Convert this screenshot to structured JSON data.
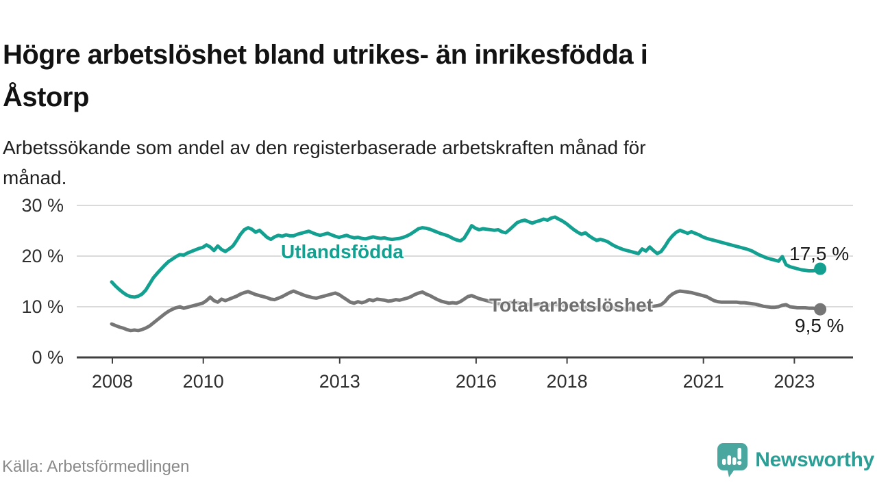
{
  "title": {
    "full": "Högre arbetslöshet bland utrikes- än inrikesfödda i Åstorp",
    "line1": "Högre arbetslöshet bland utrikes- än inrikesfödda i",
    "line2": "Åstorp"
  },
  "subtitle": {
    "full": "Arbetssökande som andel av den registerbaserade arbetskraften månad för månad.",
    "line1": "Arbetssökande som andel av den registerbaserade arbetskraften månad för",
    "line2": "månad."
  },
  "source": "Källa: Arbetsförmedlingen",
  "brand": {
    "name": "Newsworthy",
    "icon": "bar-chart-speech-bubble-icon",
    "icon_color": "#4aa7a0",
    "text_color": "#2b9f96"
  },
  "colors": {
    "foreign_born_line": "#14a090",
    "total_line": "#767676",
    "gridline": "#dadada",
    "axis": "#3f3f3f",
    "value_label": "#1a1a1a"
  },
  "chart_data": {
    "type": "line",
    "x_unit": "month",
    "x_range": {
      "start": "2008-01",
      "end": "2023-08"
    },
    "grid": "horizontal",
    "ylim": [
      0,
      31
    ],
    "x_ticks": [
      {
        "year": 2008,
        "label": "2008"
      },
      {
        "year": 2010,
        "label": "2010"
      },
      {
        "year": 2013,
        "label": "2013"
      },
      {
        "year": 2016,
        "label": "2016"
      },
      {
        "year": 2018,
        "label": "2018"
      },
      {
        "year": 2021,
        "label": "2021"
      },
      {
        "year": 2023,
        "label": "2023"
      }
    ],
    "y_ticks": [
      {
        "value": 0,
        "label": "0 %"
      },
      {
        "value": 10,
        "label": "10 %"
      },
      {
        "value": 20,
        "label": "20 %"
      },
      {
        "value": 30,
        "label": "30 %"
      }
    ],
    "series": [
      {
        "name": "Utlandsfödda",
        "color": "#14a090",
        "end_label": "17,5 %",
        "end_value": 17.5,
        "values": [
          14.9,
          14.1,
          13.4,
          12.8,
          12.3,
          12.0,
          11.9,
          12.1,
          12.5,
          13.3,
          14.5,
          15.7,
          16.6,
          17.4,
          18.2,
          18.9,
          19.4,
          19.9,
          20.3,
          20.2,
          20.6,
          20.9,
          21.2,
          21.5,
          21.7,
          22.2,
          21.8,
          21.1,
          22.0,
          21.3,
          20.9,
          21.4,
          22.0,
          23.1,
          24.3,
          25.2,
          25.6,
          25.3,
          24.7,
          25.1,
          24.4,
          23.7,
          23.3,
          23.8,
          24.1,
          23.9,
          24.2,
          24.0,
          24.0,
          24.3,
          24.5,
          24.7,
          24.9,
          24.6,
          24.3,
          24.1,
          24.3,
          24.5,
          24.2,
          23.9,
          23.7,
          23.9,
          24.1,
          23.8,
          23.6,
          23.7,
          23.5,
          23.4,
          23.6,
          23.8,
          23.6,
          23.5,
          23.6,
          23.4,
          23.3,
          23.4,
          23.5,
          23.7,
          24.0,
          24.4,
          24.9,
          25.4,
          25.6,
          25.5,
          25.3,
          25.0,
          24.7,
          24.4,
          24.2,
          23.9,
          23.5,
          23.2,
          23.0,
          23.5,
          24.7,
          26.0,
          25.5,
          25.2,
          25.4,
          25.3,
          25.2,
          25.1,
          25.2,
          24.8,
          24.6,
          25.2,
          25.9,
          26.6,
          26.9,
          27.1,
          26.8,
          26.5,
          26.8,
          27.0,
          27.3,
          27.1,
          27.5,
          27.7,
          27.3,
          26.9,
          26.4,
          25.8,
          25.2,
          24.7,
          24.3,
          24.6,
          24.0,
          23.5,
          23.1,
          23.3,
          23.1,
          22.8,
          22.3,
          21.9,
          21.6,
          21.3,
          21.1,
          20.9,
          20.7,
          20.5,
          21.4,
          21.0,
          21.8,
          21.1,
          20.5,
          20.9,
          21.9,
          23.1,
          24.0,
          24.7,
          25.1,
          24.8,
          24.5,
          24.8,
          24.5,
          24.2,
          23.8,
          23.5,
          23.3,
          23.1,
          22.9,
          22.7,
          22.5,
          22.3,
          22.1,
          21.9,
          21.7,
          21.5,
          21.3,
          21.0,
          20.6,
          20.2,
          19.9,
          19.6,
          19.4,
          19.2,
          19.0,
          19.9,
          18.3,
          17.9,
          17.7,
          17.5,
          17.3,
          17.2,
          17.1,
          17.1,
          17.2,
          17.5
        ]
      },
      {
        "name": "Total arbetslöshet",
        "color": "#767676",
        "end_label": "9,5 %",
        "end_value": 9.5,
        "values": [
          6.6,
          6.3,
          6.0,
          5.8,
          5.5,
          5.3,
          5.4,
          5.3,
          5.5,
          5.8,
          6.2,
          6.8,
          7.4,
          8.0,
          8.6,
          9.1,
          9.5,
          9.8,
          10.0,
          9.7,
          9.9,
          10.1,
          10.3,
          10.5,
          10.7,
          11.2,
          11.9,
          11.2,
          10.9,
          11.5,
          11.2,
          11.5,
          11.8,
          12.1,
          12.5,
          12.8,
          13.0,
          12.7,
          12.4,
          12.2,
          12.0,
          11.8,
          11.5,
          11.4,
          11.7,
          12.0,
          12.4,
          12.8,
          13.1,
          12.8,
          12.5,
          12.2,
          12.0,
          11.8,
          11.7,
          11.9,
          12.1,
          12.3,
          12.5,
          12.7,
          12.4,
          11.9,
          11.4,
          10.9,
          10.7,
          11.0,
          10.8,
          11.0,
          11.4,
          11.2,
          11.5,
          11.4,
          11.3,
          11.1,
          11.2,
          11.4,
          11.3,
          11.5,
          11.7,
          12.0,
          12.4,
          12.7,
          12.9,
          12.5,
          12.2,
          11.8,
          11.4,
          11.1,
          10.9,
          10.7,
          10.8,
          10.7,
          11.0,
          11.5,
          12.0,
          12.2,
          11.9,
          11.6,
          11.4,
          11.2,
          11.0,
          10.8,
          10.6,
          10.5,
          10.6,
          10.8,
          10.9,
          10.8,
          10.7,
          10.6,
          10.5,
          10.4,
          10.5,
          10.6,
          10.4,
          10.3,
          10.4,
          10.5,
          10.4,
          10.3,
          10.2,
          10.1,
          10.0,
          9.9,
          9.8,
          9.9,
          9.8,
          9.7,
          9.8,
          9.9,
          9.8,
          9.9,
          9.8,
          9.7,
          9.6,
          9.6,
          9.5,
          9.6,
          9.7,
          9.6,
          9.8,
          9.9,
          10.0,
          10.1,
          10.2,
          10.4,
          11.0,
          11.9,
          12.5,
          12.9,
          13.1,
          13.0,
          12.9,
          12.8,
          12.6,
          12.4,
          12.2,
          12.0,
          11.6,
          11.2,
          11.0,
          10.9,
          10.9,
          10.9,
          10.9,
          10.9,
          10.8,
          10.8,
          10.7,
          10.6,
          10.5,
          10.3,
          10.1,
          10.0,
          9.9,
          9.9,
          10.0,
          10.3,
          10.4,
          10.0,
          9.9,
          9.8,
          9.8,
          9.8,
          9.7,
          9.7,
          9.6,
          9.5
        ]
      }
    ]
  }
}
